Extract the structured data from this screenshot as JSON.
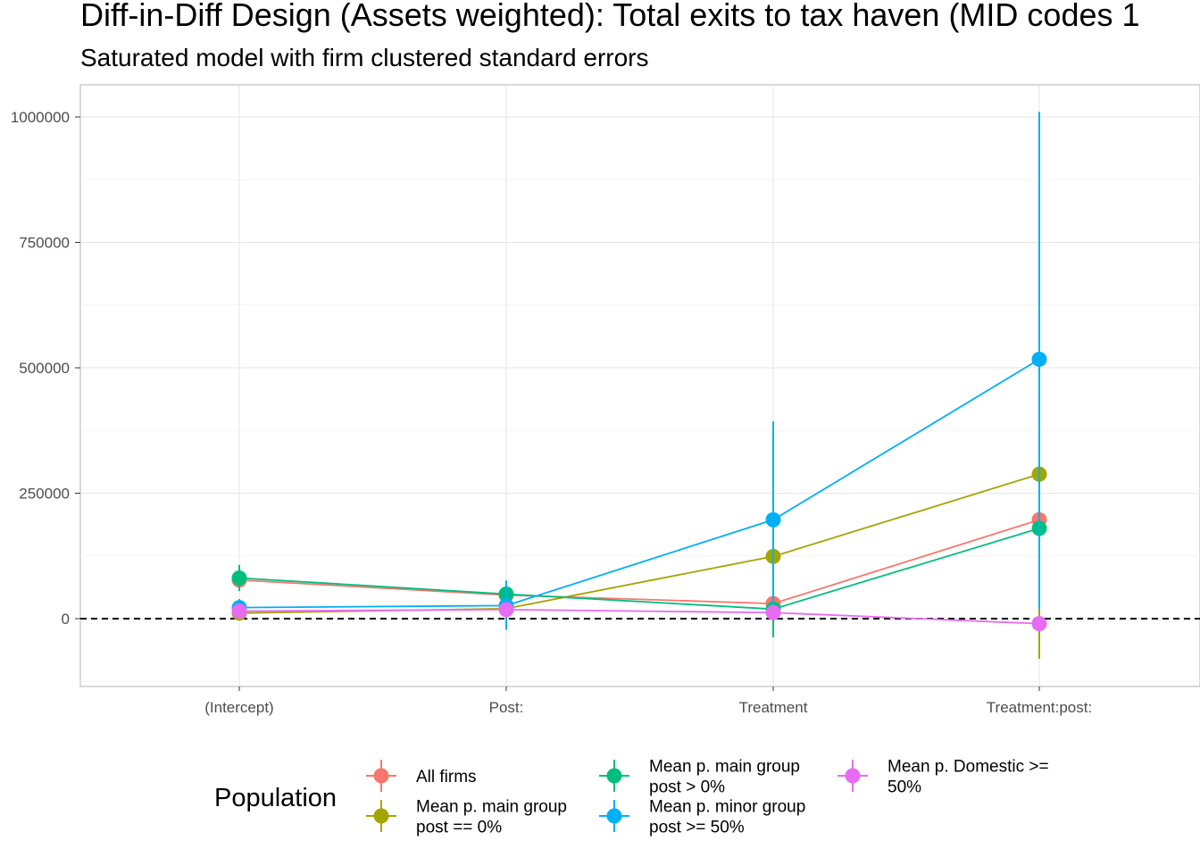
{
  "chart_data": {
    "type": "scatter",
    "title": "Diff-in-Diff Design (Assets weighted): Total exits to tax haven (MID codes 1",
    "subtitle": "Saturated model with firm clustered standard errors",
    "categories": [
      "(Intercept)",
      "Post:",
      "Treatment",
      "Treatment:post:"
    ],
    "ylim": [
      -130000,
      1060000
    ],
    "yticks": [
      0,
      250000,
      500000,
      750000,
      1000000
    ],
    "ytick_labels": [
      "0",
      "250000",
      "500000",
      "750000",
      "1000000"
    ],
    "reference_line": 0,
    "grid": true,
    "legend": {
      "title": "Population",
      "placement": "bottom"
    },
    "series": [
      {
        "name": "All firms",
        "label_lines": [
          "All firms"
        ],
        "color": "#F8766D",
        "values": [
          77000,
          47000,
          30000,
          197000
        ],
        "lower": [
          55000,
          40000,
          20000,
          5000
        ],
        "upper": [
          99000,
          54000,
          40000,
          389000
        ]
      },
      {
        "name": "Mean p. main group post == 0%",
        "label_lines": [
          "Mean p. main group",
          "post == 0%"
        ],
        "color": "#A3A500",
        "values": [
          11000,
          20000,
          124000,
          288000
        ],
        "lower": [
          6000,
          15000,
          115000,
          -80000
        ],
        "upper": [
          16000,
          25000,
          133000,
          656000
        ]
      },
      {
        "name": "Mean p. main group post > 0%",
        "label_lines": [
          "Mean p. main group",
          "post > 0%"
        ],
        "color": "#00BF7D",
        "values": [
          81000,
          49000,
          19000,
          180000
        ],
        "lower": [
          55000,
          40000,
          -37000,
          20000
        ],
        "upper": [
          107000,
          58000,
          75000,
          340000
        ]
      },
      {
        "name": "Mean p. minor group post >= 50%",
        "label_lines": [
          "Mean p. minor group",
          "post >= 50%"
        ],
        "color": "#00B0F6",
        "values": [
          22000,
          26000,
          197000,
          517000
        ],
        "lower": [
          5000,
          -22000,
          0,
          20000
        ],
        "upper": [
          39000,
          76000,
          393000,
          1010000
        ]
      },
      {
        "name": "Mean p. Domestic >= 50%",
        "label_lines": [
          "Mean p. Domestic >=",
          "50%"
        ],
        "color": "#E76BF3",
        "values": [
          15000,
          18000,
          12000,
          -10000
        ],
        "lower": [
          10000,
          13000,
          7000,
          -15000
        ],
        "upper": [
          20000,
          23000,
          17000,
          -5000
        ]
      }
    ]
  }
}
